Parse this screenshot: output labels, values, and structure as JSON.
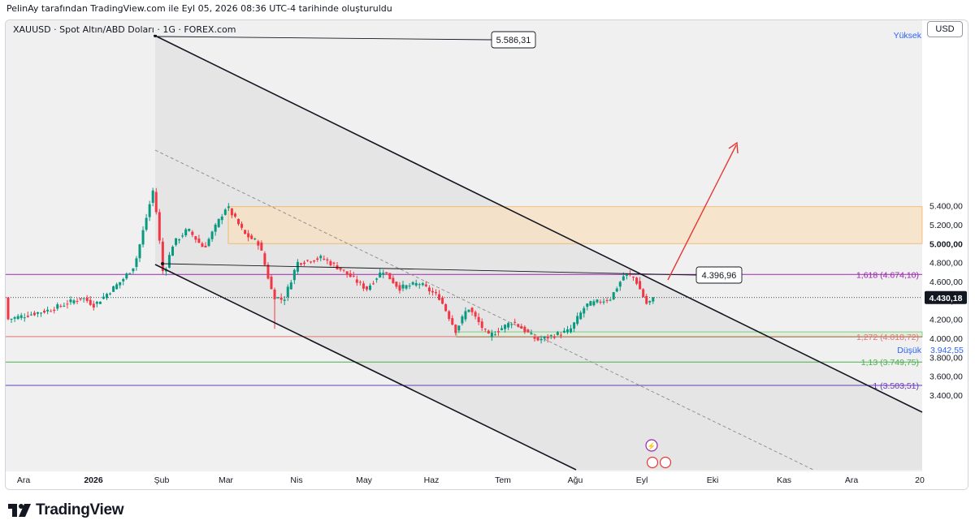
{
  "caption": "PelinAy tarafından TradingView.com ile Eyl 05, 2026 08:36 UTC-4 tarihinde oluşturuldu",
  "symbol_line": "XAUUSD · Spot Altın/ABD Doları · 1G · FOREX.com",
  "currency_button": "USD",
  "brand": "TradingView",
  "colors": {
    "up": "#089981",
    "down": "#f23645",
    "channel": "#131722",
    "fib_1618": "#9c27b0",
    "fib_1272": "#e57373",
    "fib_113": "#4caf50",
    "fib_1": "#673ab7",
    "target_zone_fill": "#f9e0c0",
    "target_zone_border": "#f0a030",
    "arrow": "#e53935"
  },
  "chart_data": {
    "type": "candlestick",
    "instrument": "XAUUSD",
    "interval": "1G",
    "y_unit": "USD",
    "ylim": [
      3300,
      5650
    ],
    "y_ticks": [
      {
        "value": 3400,
        "label": "3.400,00"
      },
      {
        "value": 3600,
        "label": "3.600,00"
      },
      {
        "value": 3800,
        "label": "3.800,00"
      },
      {
        "value": 4000,
        "label": "4.000,00"
      },
      {
        "value": 4200,
        "label": "4.200,00"
      },
      {
        "value": 4400,
        "label": "4.400,00"
      },
      {
        "value": 4600,
        "label": "4.600,00"
      },
      {
        "value": 4800,
        "label": "4.800,00"
      },
      {
        "value": 5000,
        "label": "5.000,00"
      },
      {
        "value": 5200,
        "label": "5.200,00"
      },
      {
        "value": 5400,
        "label": "5.400,00"
      }
    ],
    "x_ticks": [
      "Ara",
      "2026",
      "Şub",
      "Mar",
      "Nis",
      "May",
      "Haz",
      "Tem",
      "Ağu",
      "Eyl",
      "Eki",
      "Kas",
      "Ara",
      "20"
    ],
    "price_labels": {
      "high_word": "Yüksek",
      "low_word": "Düşük",
      "last": "4.430,18",
      "low_value": "3.942,55",
      "bold_level": "5.000,00"
    },
    "callouts": [
      {
        "label": "5.586,31",
        "value": 5586.31
      },
      {
        "label": "4.396,96",
        "value": 4396.96
      }
    ],
    "fib_levels": [
      {
        "label": "1,618 (4.674,10)",
        "value": 4674.1
      },
      {
        "label": "1,272 (4.018,72)",
        "value": 4018.72
      },
      {
        "label": "1,13 (3.749,75)",
        "value": 3749.75
      },
      {
        "label": "1 (3.503,51)",
        "value": 3503.51
      }
    ],
    "target_zone": [
      5000,
      5390
    ],
    "support_zone": [
      4012,
      4068
    ],
    "last_price": 4430.18,
    "month_closes": [
      {
        "month": "Ara",
        "value": 4300
      },
      {
        "month": "Oca",
        "value": 4750
      },
      {
        "month": "Şub",
        "value": 5000
      },
      {
        "month": "Mar",
        "value": 4600
      },
      {
        "month": "Nis",
        "value": 4650
      },
      {
        "month": "May",
        "value": 4500
      },
      {
        "month": "Haz",
        "value": 4050
      },
      {
        "month": "Tem",
        "value": 4100
      },
      {
        "month": "Ağu",
        "value": 4500
      },
      {
        "month": "Eyl",
        "value": 4430
      }
    ],
    "key_points": [
      {
        "date": "Ara",
        "price": 4200
      },
      {
        "date": "Oca",
        "price": 4650
      },
      {
        "date": "Şub",
        "price": 5586
      },
      {
        "date": "Şub",
        "price": 4650
      },
      {
        "date": "Mar",
        "price": 5400
      },
      {
        "date": "Mar",
        "price": 4400
      },
      {
        "date": "Nis",
        "price": 4850
      },
      {
        "date": "May",
        "price": 4500
      },
      {
        "date": "Haz",
        "price": 3950
      },
      {
        "date": "Tem",
        "price": 4100
      },
      {
        "date": "Ağu",
        "price": 4680
      },
      {
        "date": "Eyl",
        "price": 4350
      },
      {
        "date": "Eyl",
        "price": 4430
      }
    ]
  }
}
